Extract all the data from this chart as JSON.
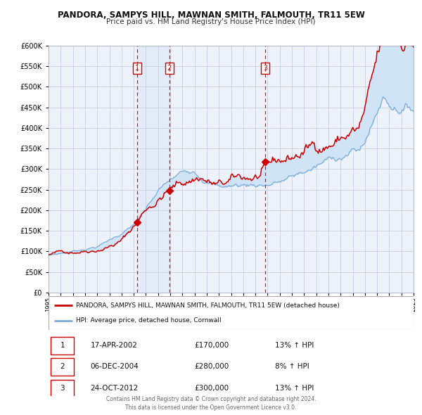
{
  "title": "PANDORA, SAMPYS HILL, MAWNAN SMITH, FALMOUTH, TR11 5EW",
  "subtitle": "Price paid vs. HM Land Registry's House Price Index (HPI)",
  "legend_line1": "PANDORA, SAMPYS HILL, MAWNAN SMITH, FALMOUTH, TR11 5EW (detached house)",
  "legend_line2": "HPI: Average price, detached house, Cornwall",
  "transactions": [
    {
      "num": "1",
      "date": "17-APR-2002",
      "price": "£170,000",
      "pct": "13%",
      "dir": "↑"
    },
    {
      "num": "2",
      "date": "06-DEC-2004",
      "price": "£280,000",
      "pct": "8%",
      "dir": "↑"
    },
    {
      "num": "3",
      "date": "24-OCT-2012",
      "price": "£300,000",
      "pct": "13%",
      "dir": "↑"
    }
  ],
  "transaction_dates_decimal": [
    2002.29,
    2004.93,
    2012.81
  ],
  "transaction_prices": [
    170000,
    280000,
    300000
  ],
  "footer1": "Contains HM Land Registry data © Crown copyright and database right 2024.",
  "footer2": "This data is licensed under the Open Government Licence v3.0.",
  "bg_color": "#eef2fb",
  "fig_color": "#ffffff",
  "grid_color": "#c8cfe0",
  "red_line_color": "#cc0000",
  "blue_line_color": "#7aaddd",
  "fill_color": "#d0e4f5",
  "dashed_color": "#cc0000",
  "box_fill": "#dde9f7",
  "ylim_min": 0,
  "ylim_max": 600000,
  "xlim_min": 1995,
  "xlim_max": 2025,
  "yticks": [
    0,
    50000,
    100000,
    150000,
    200000,
    250000,
    300000,
    350000,
    400000,
    450000,
    500000,
    550000,
    600000
  ]
}
